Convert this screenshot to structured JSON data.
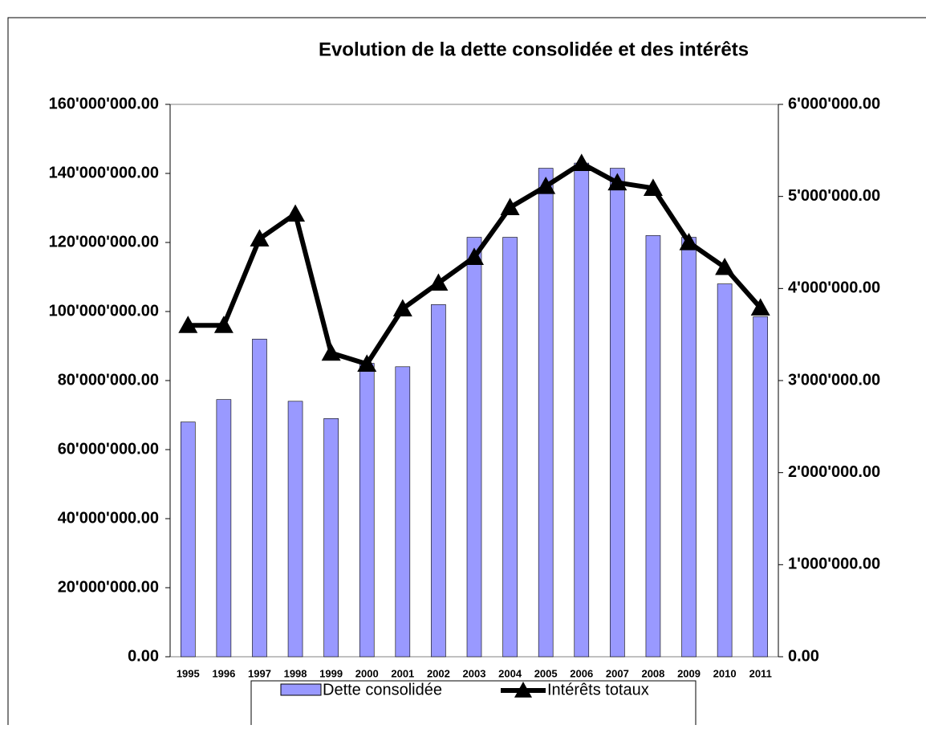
{
  "chart_data": {
    "type": "bar",
    "title": "Evolution de la dette consolidée et des intérêts",
    "categories": [
      "1995",
      "1996",
      "1997",
      "1998",
      "1999",
      "2000",
      "2001",
      "2002",
      "2003",
      "2004",
      "2005",
      "2006",
      "2007",
      "2008",
      "2009",
      "2010",
      "2011"
    ],
    "series": [
      {
        "name": "Dette consolidée",
        "type": "bar",
        "color": "#9999ff",
        "values": [
          68000000,
          74500000,
          92000000,
          74000000,
          69000000,
          85000000,
          84000000,
          102000000,
          121500000,
          121500000,
          141500000,
          143000000,
          141500000,
          122000000,
          121500000,
          108000000,
          98500000
        ]
      },
      {
        "name": "Intérêts totaux",
        "type": "line",
        "axis": "y2",
        "color": "#000000",
        "marker": "triangle",
        "values": [
          3600000,
          3600000,
          4540000,
          4810000,
          3300000,
          3180000,
          3780000,
          4060000,
          4340000,
          4880000,
          5110000,
          5360000,
          5150000,
          5090000,
          4500000,
          4230000,
          3790000
        ]
      }
    ],
    "ylim": [
      0,
      160000000
    ],
    "yticks": [
      {
        "value": 0,
        "label": "0.00"
      },
      {
        "value": 20000000,
        "label": "20'000'000.00"
      },
      {
        "value": 40000000,
        "label": "40'000'000.00"
      },
      {
        "value": 60000000,
        "label": "60'000'000.00"
      },
      {
        "value": 80000000,
        "label": "80'000'000.00"
      },
      {
        "value": 100000000,
        "label": "100'000'000.00"
      },
      {
        "value": 120000000,
        "label": "120'000'000.00"
      },
      {
        "value": 140000000,
        "label": "140'000'000.00"
      },
      {
        "value": 160000000,
        "label": "160'000'000.00"
      }
    ],
    "y2lim": [
      0,
      6000000
    ],
    "y2ticks": [
      {
        "value": 0,
        "label": "0.00"
      },
      {
        "value": 1000000,
        "label": "1'000'000.00"
      },
      {
        "value": 2000000,
        "label": "2'000'000.00"
      },
      {
        "value": 3000000,
        "label": "3'000'000.00"
      },
      {
        "value": 4000000,
        "label": "4'000'000.00"
      },
      {
        "value": 5000000,
        "label": "5'000'000.00"
      },
      {
        "value": 6000000,
        "label": "6'000'000.00"
      }
    ],
    "legend": "bottom"
  }
}
